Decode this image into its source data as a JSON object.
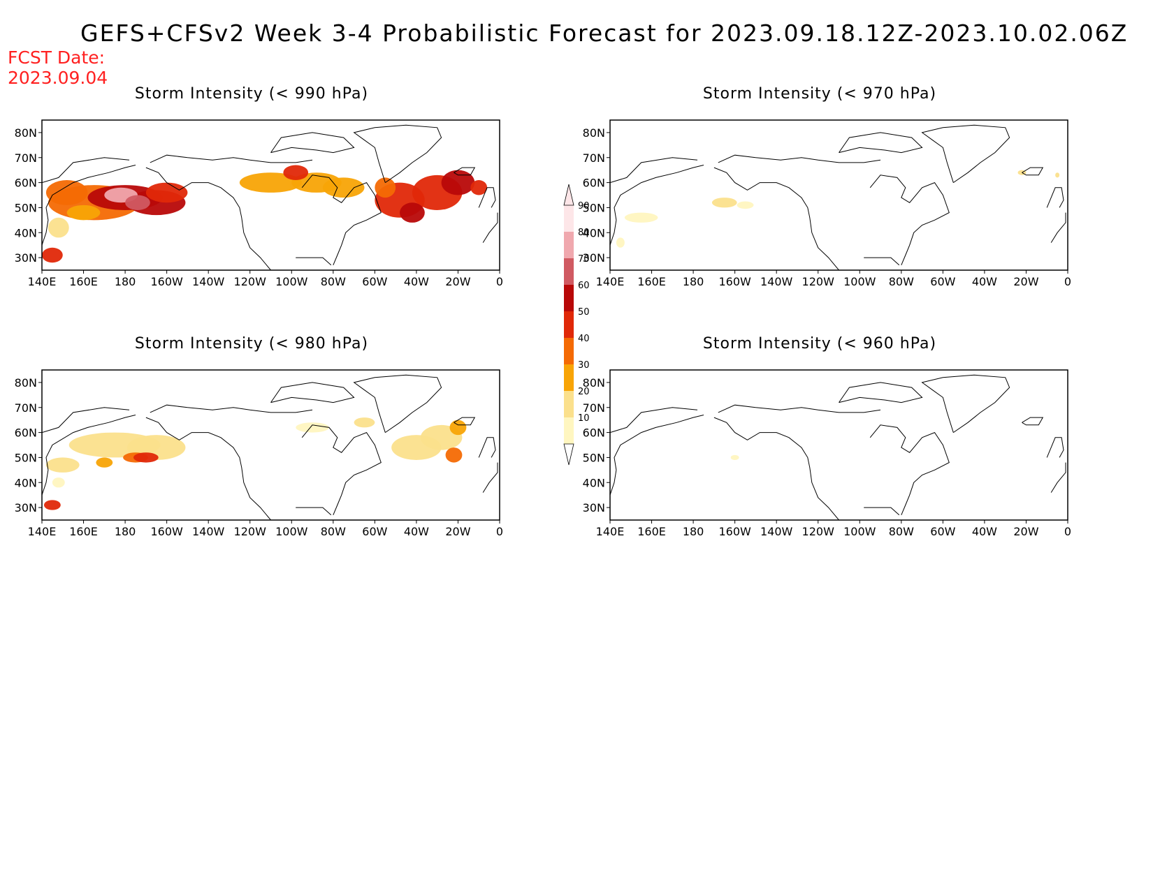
{
  "title": "GEFS+CFSv2 Week 3-4 Probabilistic Forecast for 2023.09.18.12Z-2023.10.02.06Z",
  "forecast_date": {
    "label": "FCST Date:",
    "value": "2023.09.04"
  },
  "axes": {
    "lat_labels": [
      "80N",
      "70N",
      "60N",
      "50N",
      "40N",
      "30N"
    ],
    "lon_labels": [
      "140E",
      "160E",
      "180",
      "160W",
      "140W",
      "120W",
      "100W",
      "80W",
      "60W",
      "40W",
      "20W",
      "0"
    ]
  },
  "colorbar": {
    "levels": [
      "10",
      "20",
      "30",
      "40",
      "50",
      "60",
      "70",
      "80",
      "90"
    ],
    "colors": [
      "#fff6c0",
      "#fbe08c",
      "#f8a406",
      "#f46a04",
      "#e02808",
      "#b80808",
      "#d05a62",
      "#f0a8ae",
      "#fde6e8"
    ]
  },
  "panels": [
    {
      "id": "p990",
      "title": "Storm Intensity (< 990 hPa)"
    },
    {
      "id": "p970",
      "title": "Storm Intensity (< 970 hPa)"
    },
    {
      "id": "p980",
      "title": "Storm Intensity (< 980 hPa)"
    },
    {
      "id": "p960",
      "title": "Storm Intensity (< 960 hPa)"
    }
  ]
}
